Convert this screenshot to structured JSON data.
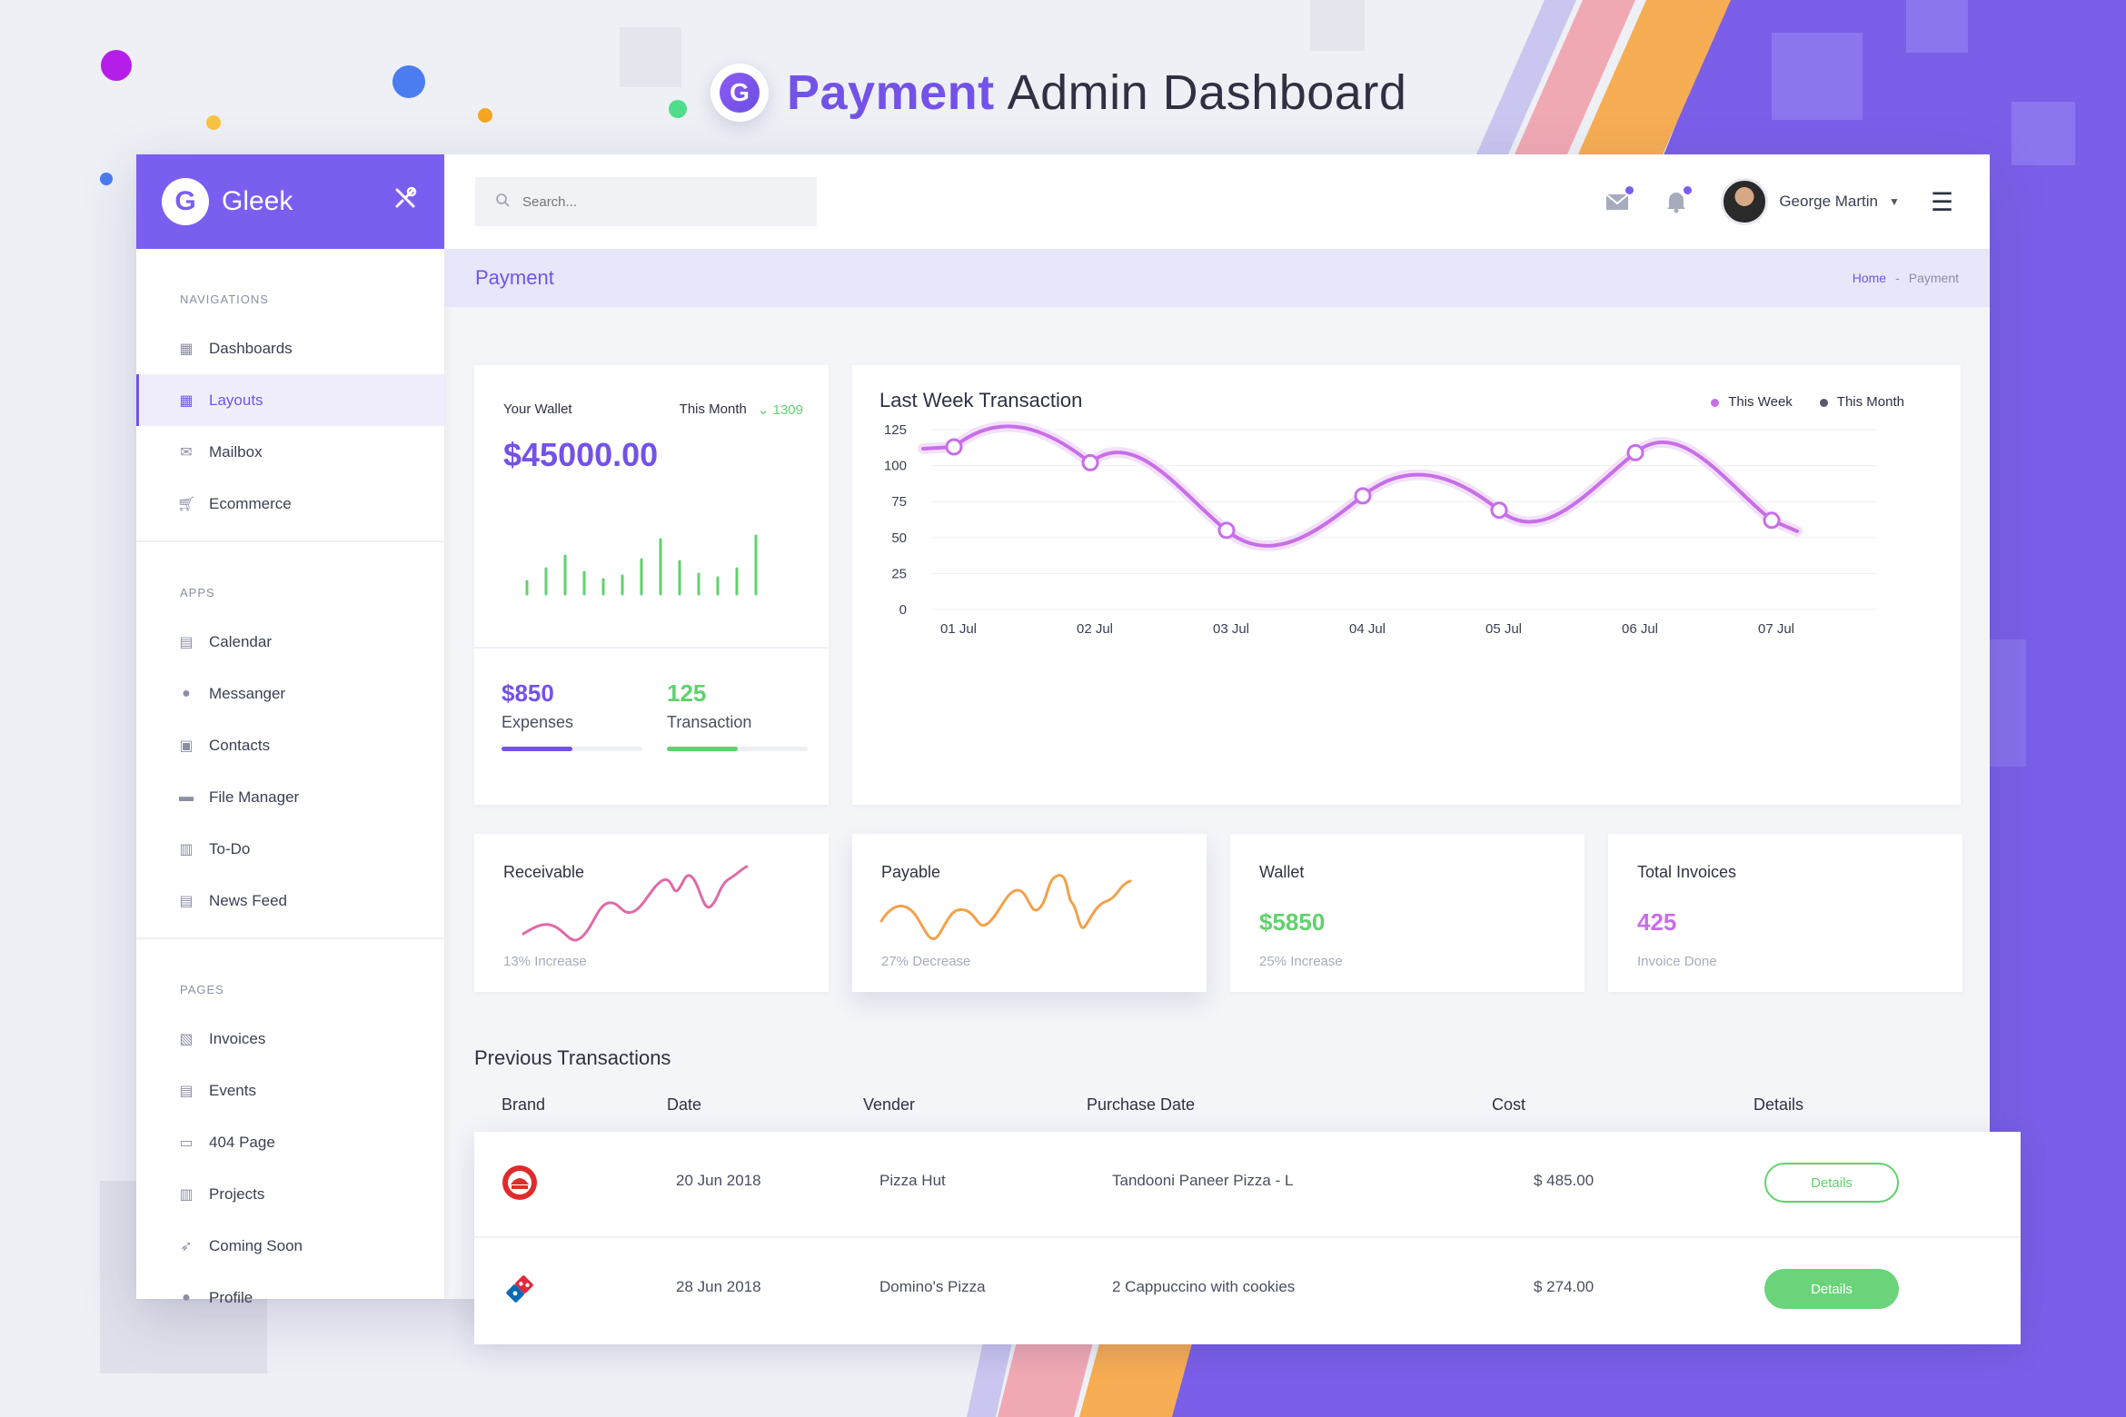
{
  "hero": {
    "brand": "Payment",
    "rest": "Admin Dashboard",
    "logo_letter": "G"
  },
  "app": {
    "name": "Gleek",
    "logo_letter": "G"
  },
  "colors": {
    "accent": "#7352e8",
    "green": "#5fd26e",
    "pink": "#e06aa8",
    "orange": "#f3a14a",
    "chart_line": "#c86ee8"
  },
  "sidebar": {
    "sections": [
      {
        "heading": "NAVIGATIONS",
        "items": [
          {
            "label": "Dashboards",
            "icon": "dashboard-icon"
          },
          {
            "label": "Layouts",
            "icon": "grid-icon",
            "active": true
          },
          {
            "label": "Mailbox",
            "icon": "mail-icon"
          },
          {
            "label": "Ecommerce",
            "icon": "cart-icon"
          }
        ]
      },
      {
        "heading": "APPS",
        "items": [
          {
            "label": "Calendar",
            "icon": "calendar-icon"
          },
          {
            "label": "Messanger",
            "icon": "chat-icon"
          },
          {
            "label": "Contacts",
            "icon": "contact-icon"
          },
          {
            "label": "File Manager",
            "icon": "folder-icon"
          },
          {
            "label": "To-Do",
            "icon": "clipboard-icon"
          },
          {
            "label": "News Feed",
            "icon": "news-icon"
          }
        ]
      },
      {
        "heading": "PAGES",
        "items": [
          {
            "label": "Invoices",
            "icon": "invoice-icon"
          },
          {
            "label": "Events",
            "icon": "events-icon"
          },
          {
            "label": "404 Page",
            "icon": "error-page-icon"
          },
          {
            "label": "Projects",
            "icon": "projects-icon"
          },
          {
            "label": "Coming Soon",
            "icon": "rocket-icon"
          },
          {
            "label": "Profile",
            "icon": "user-icon"
          }
        ]
      }
    ]
  },
  "topbar": {
    "search_placeholder": "Search...",
    "user_name": "George Martin"
  },
  "page": {
    "title": "Payment",
    "breadcrumb_home": "Home",
    "breadcrumb_sep": "-",
    "breadcrumb_current": "Payment"
  },
  "wallet": {
    "label": "Your Wallet",
    "period": "This Month",
    "change": "1309",
    "amount": "$45000.00",
    "expenses_value": "$850",
    "expenses_label": "Expenses",
    "expenses_progress": 0.5,
    "transaction_value": "125",
    "transaction_label": "Transaction",
    "transaction_progress": 0.5
  },
  "last_week": {
    "title": "Last Week Transaction",
    "legend_this_week": "This Week",
    "legend_this_month": "This Month"
  },
  "chart_data": {
    "type": "line",
    "title": "Last Week Transaction",
    "categories": [
      "01 Jul",
      "02 Jul",
      "03 Jul",
      "04 Jul",
      "05 Jul",
      "06 Jul",
      "07 Jul"
    ],
    "yticks": [
      0,
      25,
      50,
      75,
      100,
      125
    ],
    "ylim": [
      0,
      125
    ],
    "series": [
      {
        "name": "This Week",
        "values": [
          113,
          102,
          55,
          79,
          69,
          109,
          62
        ]
      }
    ],
    "grid": true,
    "legend": "top-right"
  },
  "mini_cards": [
    {
      "title": "Receivable",
      "value": "",
      "sub": "13% Increase",
      "spark": "pink"
    },
    {
      "title": "Payable",
      "value": "",
      "sub": "27% Decrease",
      "spark": "orange"
    },
    {
      "title": "Wallet",
      "value": "$5850",
      "sub": "25% Increase"
    },
    {
      "title": "Total Invoices",
      "value": "425",
      "sub": "Invoice Done"
    }
  ],
  "transactions": {
    "title": "Previous Transactions",
    "headers": [
      "Brand",
      "Date",
      "Vender",
      "Purchase Date",
      "Cost",
      "Details"
    ],
    "rows": [
      {
        "brand_icon": "pizza-hut-logo",
        "date": "20 Jun 2018",
        "vendor": "Pizza Hut",
        "purchase": "Tandooni Paneer Pizza - L",
        "cost": "$ 485.00",
        "button": "Details"
      },
      {
        "brand_icon": "dominos-logo",
        "date": "28 Jun 2018",
        "vendor": "Domino's Pizza",
        "purchase": "2 Cappuccino with cookies",
        "cost": "$ 274.00",
        "button": "Details"
      }
    ]
  }
}
